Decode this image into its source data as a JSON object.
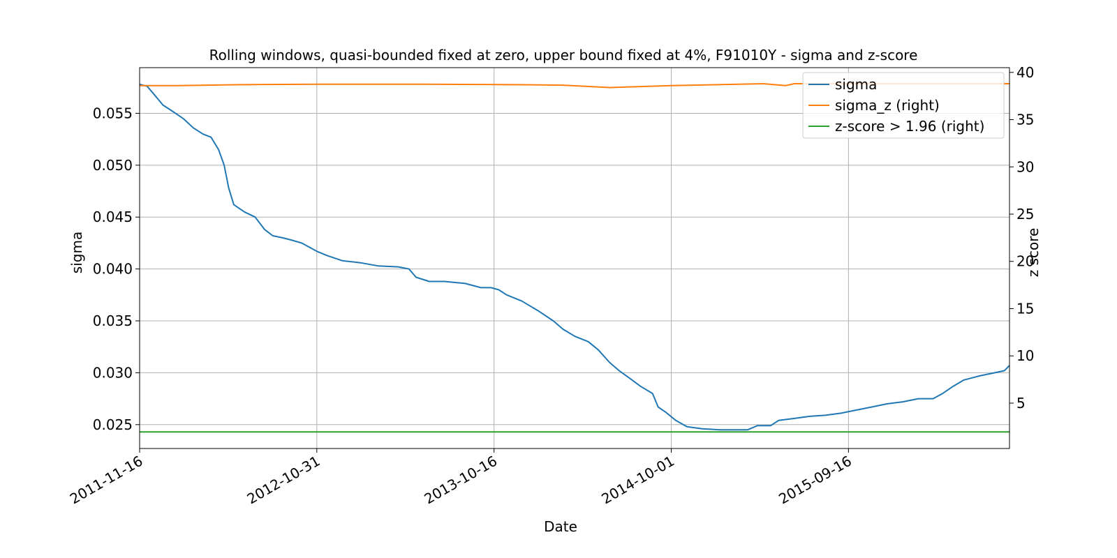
{
  "chart_data": {
    "type": "line",
    "title": "Rolling windows, quasi-bounded fixed at zero, upper bound fixed at 4%, F91010Y - sigma and z-score",
    "xlabel": "Date",
    "ylabel": "sigma",
    "ylabel_right": "z score",
    "xlim": [
      "2011-11-16",
      "2016-07-30"
    ],
    "ylim": [
      0.0227,
      0.0594
    ],
    "ylim_right": [
      0.2,
      40.5
    ],
    "x_ticks": [
      "2011-11-16",
      "2012-10-31",
      "2013-10-16",
      "2014-10-01",
      "2015-09-16"
    ],
    "y_ticks": [
      "0.025",
      "0.030",
      "0.035",
      "0.040",
      "0.045",
      "0.050",
      "0.055"
    ],
    "y_ticks_right": [
      "5",
      "10",
      "15",
      "20",
      "25",
      "30",
      "35",
      "40"
    ],
    "grid": true,
    "legend_position": "top-right",
    "series": [
      {
        "name": "sigma",
        "axis": "left",
        "color": "#1f77b4",
        "points": [
          [
            "2011-11-16",
            0.0578
          ],
          [
            "2011-12-01",
            0.0576
          ],
          [
            "2011-12-15",
            0.0568
          ],
          [
            "2012-01-01",
            0.0558
          ],
          [
            "2012-01-20",
            0.0552
          ],
          [
            "2012-02-10",
            0.0545
          ],
          [
            "2012-03-01",
            0.0536
          ],
          [
            "2012-03-20",
            0.053
          ],
          [
            "2012-04-05",
            0.0527
          ],
          [
            "2012-04-20",
            0.0515
          ],
          [
            "2012-05-01",
            0.05
          ],
          [
            "2012-05-10",
            0.0478
          ],
          [
            "2012-05-20",
            0.0462
          ],
          [
            "2012-06-10",
            0.0455
          ],
          [
            "2012-07-01",
            0.045
          ],
          [
            "2012-07-20",
            0.0438
          ],
          [
            "2012-08-05",
            0.0432
          ],
          [
            "2012-08-25",
            0.043
          ],
          [
            "2012-09-10",
            0.0428
          ],
          [
            "2012-10-01",
            0.0425
          ],
          [
            "2012-10-31",
            0.0417
          ],
          [
            "2012-11-20",
            0.0413
          ],
          [
            "2012-12-20",
            0.0408
          ],
          [
            "2013-01-25",
            0.0406
          ],
          [
            "2013-03-01",
            0.0403
          ],
          [
            "2013-04-10",
            0.0402
          ],
          [
            "2013-05-01",
            0.04
          ],
          [
            "2013-05-15",
            0.0392
          ],
          [
            "2013-06-10",
            0.0388
          ],
          [
            "2013-07-10",
            0.0388
          ],
          [
            "2013-08-20",
            0.0386
          ],
          [
            "2013-09-20",
            0.0382
          ],
          [
            "2013-10-10",
            0.0382
          ],
          [
            "2013-10-25",
            0.038
          ],
          [
            "2013-11-10",
            0.0375
          ],
          [
            "2013-12-10",
            0.0369
          ],
          [
            "2014-01-10",
            0.036
          ],
          [
            "2014-02-10",
            0.035
          ],
          [
            "2014-03-01",
            0.0342
          ],
          [
            "2014-03-25",
            0.0335
          ],
          [
            "2014-04-20",
            0.033
          ],
          [
            "2014-05-10",
            0.0322
          ],
          [
            "2014-06-01",
            0.031
          ],
          [
            "2014-06-20",
            0.0302
          ],
          [
            "2014-07-10",
            0.0295
          ],
          [
            "2014-08-01",
            0.0287
          ],
          [
            "2014-08-25",
            0.028
          ],
          [
            "2014-09-05",
            0.0267
          ],
          [
            "2014-09-20",
            0.0262
          ],
          [
            "2014-10-10",
            0.0254
          ],
          [
            "2014-11-01",
            0.0248
          ],
          [
            "2014-12-01",
            0.0246
          ],
          [
            "2015-01-05",
            0.0245
          ],
          [
            "2015-02-10",
            0.0245
          ],
          [
            "2015-03-01",
            0.0245
          ],
          [
            "2015-03-20",
            0.0249
          ],
          [
            "2015-04-15",
            0.0249
          ],
          [
            "2015-05-01",
            0.0254
          ],
          [
            "2015-06-01",
            0.0256
          ],
          [
            "2015-07-01",
            0.0258
          ],
          [
            "2015-08-01",
            0.0259
          ],
          [
            "2015-09-01",
            0.0261
          ],
          [
            "2015-10-01",
            0.0264
          ],
          [
            "2015-11-01",
            0.0267
          ],
          [
            "2015-12-01",
            0.027
          ],
          [
            "2016-01-01",
            0.0272
          ],
          [
            "2016-02-01",
            0.0275
          ],
          [
            "2016-03-01",
            0.0275
          ],
          [
            "2016-03-20",
            0.028
          ],
          [
            "2016-04-10",
            0.0287
          ],
          [
            "2016-05-01",
            0.0293
          ],
          [
            "2016-06-01",
            0.0297
          ],
          [
            "2016-07-01",
            0.03
          ],
          [
            "2016-07-20",
            0.0302
          ],
          [
            "2016-07-30",
            0.0307
          ]
        ]
      },
      {
        "name": "sigma_z (right)",
        "axis": "right",
        "color": "#ff7f0e",
        "points": [
          [
            "2011-11-16",
            38.6
          ],
          [
            "2012-02-01",
            38.6
          ],
          [
            "2012-06-01",
            38.7
          ],
          [
            "2012-10-31",
            38.75
          ],
          [
            "2013-06-01",
            38.75
          ],
          [
            "2013-12-01",
            38.7
          ],
          [
            "2014-03-01",
            38.65
          ],
          [
            "2014-06-01",
            38.4
          ],
          [
            "2014-08-01",
            38.5
          ],
          [
            "2014-10-01",
            38.6
          ],
          [
            "2015-01-01",
            38.7
          ],
          [
            "2015-04-01",
            38.8
          ],
          [
            "2015-05-15",
            38.6
          ],
          [
            "2015-06-01",
            38.8
          ],
          [
            "2015-09-16",
            38.8
          ],
          [
            "2016-07-30",
            38.8
          ]
        ]
      },
      {
        "name": "z-score > 1.96 (right)",
        "axis": "right",
        "color": "#2ca02c",
        "points": [
          [
            "2011-11-16",
            1.96
          ],
          [
            "2016-07-30",
            1.96
          ]
        ]
      }
    ]
  }
}
